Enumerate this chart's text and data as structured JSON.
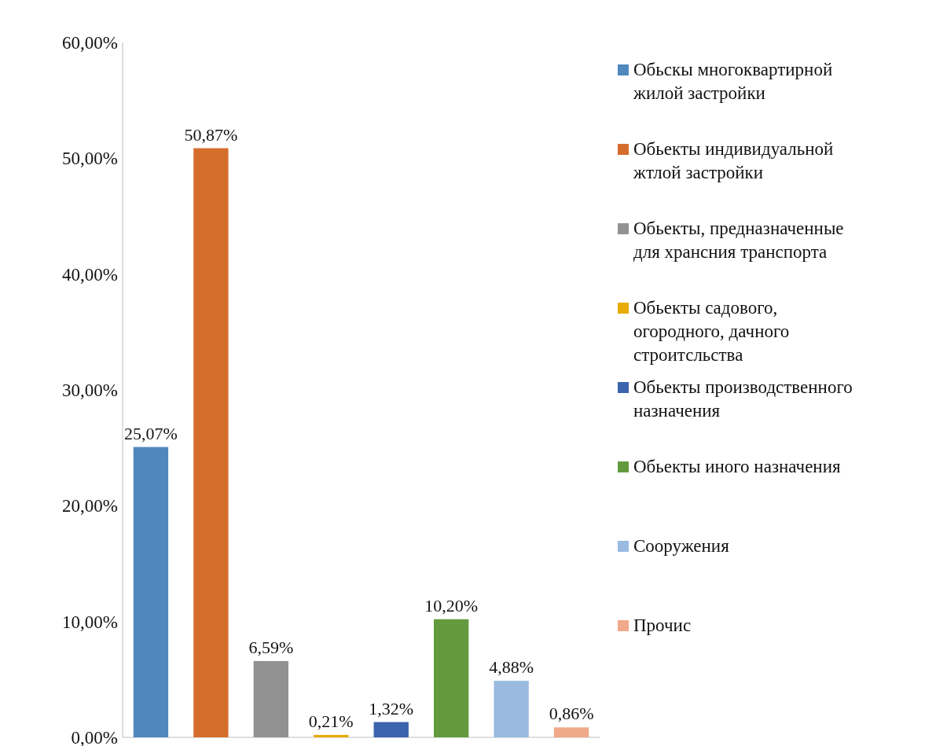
{
  "chart_data": {
    "type": "bar",
    "categories": [
      null
    ],
    "series": [
      {
        "name": "Обьскы многоквартирной жилой застройки",
        "color": "#4f88bd",
        "values": [
          25.07
        ],
        "value_labels": [
          "25,07%"
        ]
      },
      {
        "name": "Обьекты индивидуальной жтлой застройки",
        "color": "#d46d2c",
        "values": [
          50.87
        ],
        "value_labels": [
          "50,87%"
        ]
      },
      {
        "name": "Обьекты, предназначенные для хрансния транспорта",
        "color": "#929292",
        "values": [
          6.59
        ],
        "value_labels": [
          "6,59%"
        ]
      },
      {
        "name": "Обьекты садового, огородного, дачного строитсльства",
        "color": "#e7ac07",
        "values": [
          0.21
        ],
        "value_labels": [
          "0,21%"
        ]
      },
      {
        "name": "Обьекты производственного назначения",
        "color": "#3c63ad",
        "values": [
          1.32
        ],
        "value_labels": [
          "1,32%"
        ]
      },
      {
        "name": "Обьекты иного назначения",
        "color": "#639a3e",
        "values": [
          10.2
        ],
        "value_labels": [
          "10,20%"
        ]
      },
      {
        "name": "Сооружения",
        "color": "#9abae0",
        "values": [
          4.88
        ],
        "value_labels": [
          "4,88%"
        ]
      },
      {
        "name": "Прочис",
        "color": "#f0a98a",
        "values": [
          0.86
        ],
        "value_labels": [
          "0,86%"
        ]
      }
    ],
    "ylim": [
      0,
      60
    ],
    "yticks": [
      {
        "value": 0,
        "label": "0,00%"
      },
      {
        "value": 10,
        "label": "10,00%"
      },
      {
        "value": 20,
        "label": "20,00%"
      },
      {
        "value": 30,
        "label": "30,00%"
      },
      {
        "value": 40,
        "label": "40,00%"
      },
      {
        "value": 50,
        "label": "50,00%"
      },
      {
        "value": 60,
        "label": "60,00%"
      }
    ],
    "grid": false,
    "legend": "right"
  }
}
